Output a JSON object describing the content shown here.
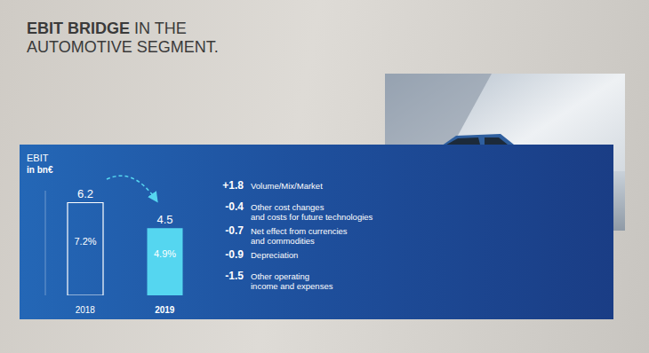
{
  "chart_data": {
    "type": "bar",
    "title": "EBIT BRIDGE IN THE AUTOMOTIVE SEGMENT.",
    "ylabel": "EBIT",
    "subtitle": "in bn€",
    "categories": [
      "2018",
      "2019"
    ],
    "values": [
      6.2,
      4.5
    ],
    "colors": [
      "#ffffff",
      "#55d6f0"
    ],
    "data_labels": true,
    "ylim": [
      0,
      7
    ],
    "tick_labels": "x",
    "grid": false,
    "ebit_margin": {
      "values": [
        7.2,
        4.9
      ],
      "labels": [
        "7.2%",
        "4.9%"
      ]
    },
    "bridge": [
      {
        "value": 1.8,
        "label": "+1.8",
        "text": [
          "Volume/Mix/Market"
        ]
      },
      {
        "value": -0.4,
        "label": "-0.4",
        "text": [
          "Other cost changes",
          "and costs for future technologies"
        ]
      },
      {
        "value": -0.7,
        "label": "-0.7",
        "text": [
          "Net effect from currencies",
          "and commodities"
        ]
      },
      {
        "value": -0.9,
        "label": "-0.9",
        "text": [
          "Depreciation"
        ]
      },
      {
        "value": -1.5,
        "label": "-1.5",
        "text": [
          "Other operating",
          "income and expenses"
        ]
      }
    ]
  }
}
